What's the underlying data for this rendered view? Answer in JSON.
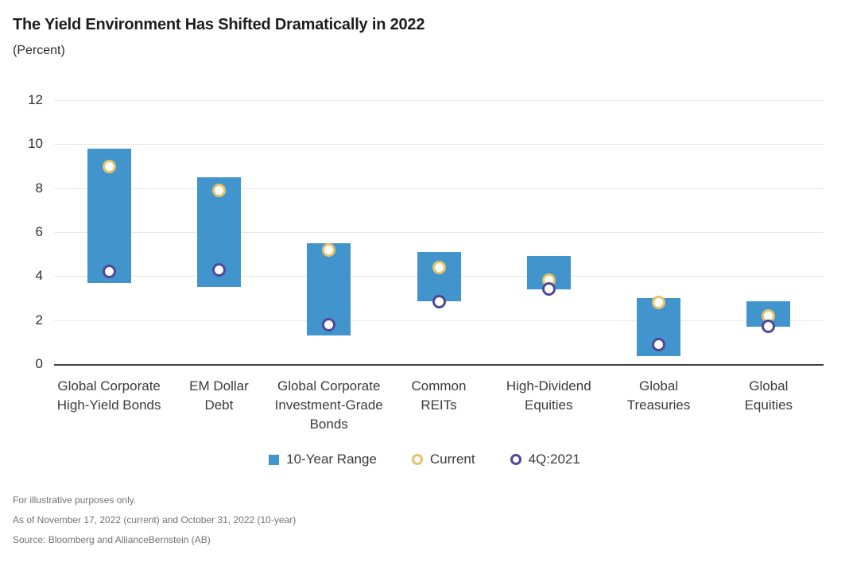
{
  "header": {
    "title": "The Yield Environment Has Shifted Dramatically in 2022",
    "subtitle": "(Percent)"
  },
  "chart_data": {
    "type": "bar",
    "variant": "floating-range-columns-with-point-markers",
    "title": "The Yield Environment Has Shifted Dramatically in 2022",
    "subtitle": "(Percent)",
    "ylabel": "Percent",
    "xlabel": "",
    "ylim": [
      0,
      12
    ],
    "yticks": [
      0,
      2,
      4,
      6,
      8,
      10,
      12
    ],
    "grid": "horizontal",
    "legend_position": "bottom-center",
    "categories": [
      "Global Corporate High-Yield Bonds",
      "EM Dollar Debt",
      "Global Corporate Investment-Grade Bonds",
      "Common REITs",
      "High-Dividend Equities",
      "Global Treasuries",
      "Global Equities"
    ],
    "category_lines": [
      [
        "Global Corporate",
        "High-Yield Bonds"
      ],
      [
        "EM Dollar",
        "Debt"
      ],
      [
        "Global Corporate",
        "Investment-Grade",
        "Bonds"
      ],
      [
        "Common",
        "REITs"
      ],
      [
        "High-Dividend",
        "Equities"
      ],
      [
        "Global",
        "Treasuries"
      ],
      [
        "Global",
        "Equities"
      ]
    ],
    "series": [
      {
        "name": "10-Year Range",
        "type": "range",
        "low": [
          3.7,
          3.5,
          1.3,
          2.85,
          3.4,
          0.35,
          1.7
        ],
        "high": [
          9.8,
          8.5,
          5.5,
          5.1,
          4.9,
          3.0,
          2.85
        ]
      },
      {
        "name": "Current",
        "type": "marker",
        "values": [
          9.0,
          7.9,
          5.2,
          4.4,
          3.8,
          2.8,
          2.2
        ]
      },
      {
        "name": "4Q:2021",
        "type": "marker",
        "values": [
          4.2,
          4.3,
          1.8,
          2.85,
          3.4,
          0.9,
          1.7
        ]
      }
    ]
  },
  "legend": {
    "items": [
      {
        "label": "10-Year Range",
        "shape": "square",
        "color": "#4195CC"
      },
      {
        "label": "Current",
        "shape": "ring",
        "color": "#E6C36A"
      },
      {
        "label": "4Q:2021",
        "shape": "ring",
        "color": "#4E4899"
      }
    ]
  },
  "footnotes": [
    "For illustrative purposes only.",
    "As of November 17, 2022 (current) and October 31, 2022 (10-year)",
    "Source: Bloomberg and AllianceBernstein (AB)"
  ],
  "colors": {
    "bar": "#4195CC",
    "current_ring": "#E6C36A",
    "prior_ring": "#4E4899",
    "grid": "#E8E8E8",
    "axis": "#3F3F3F",
    "title_text": "#1D1D1D",
    "footnote_text": "#737373"
  }
}
